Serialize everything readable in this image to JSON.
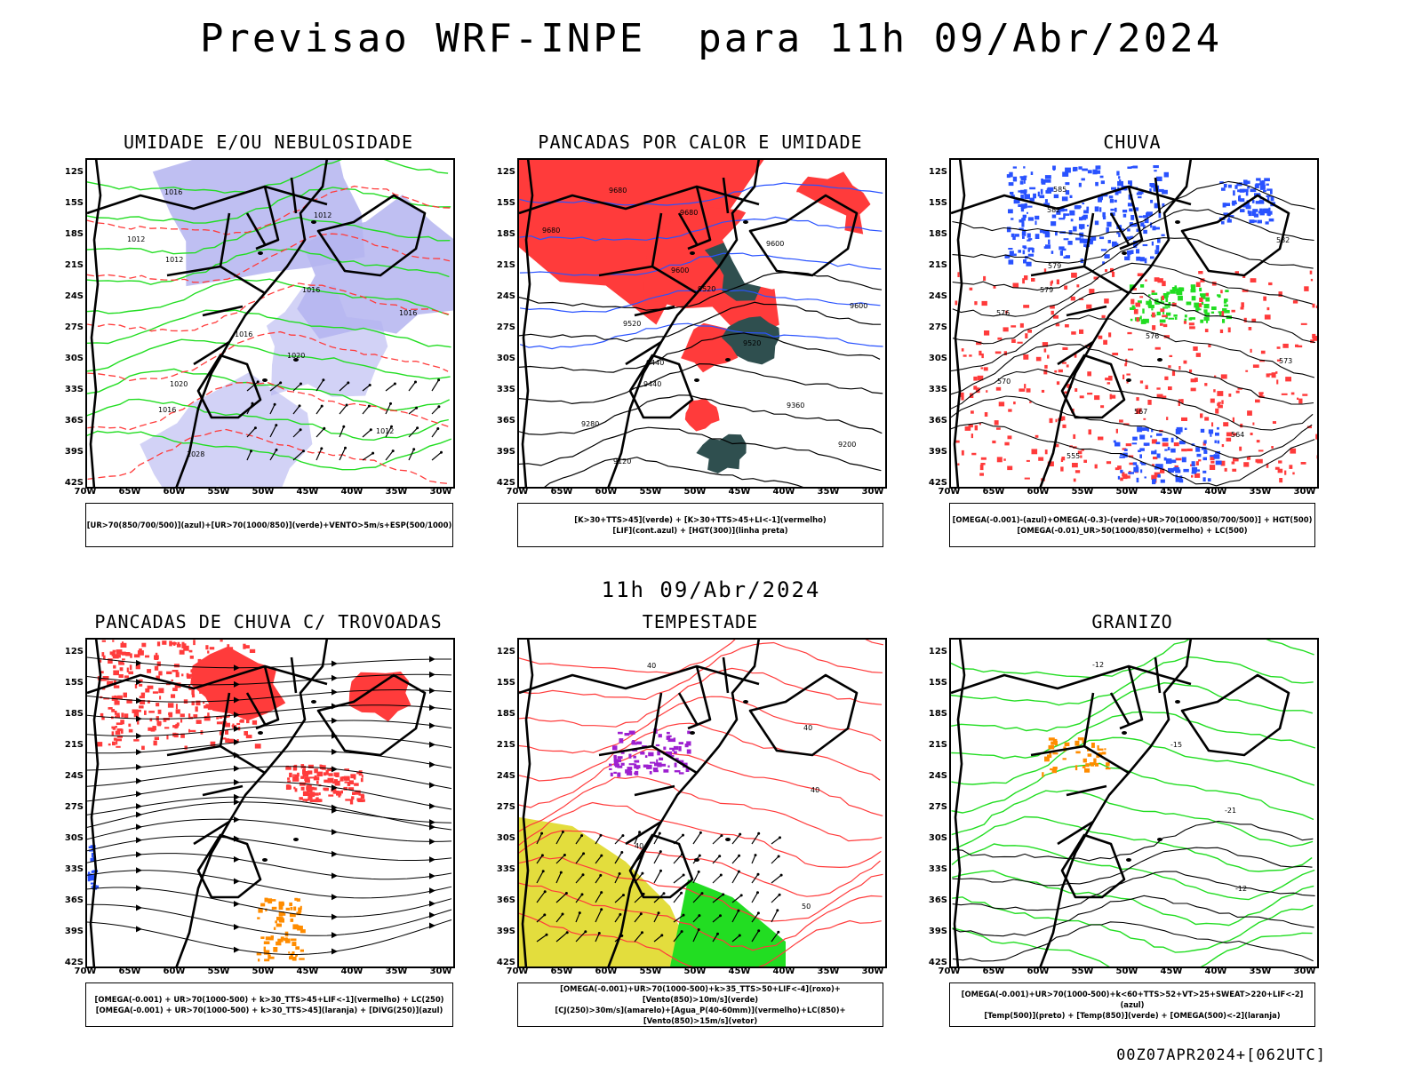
{
  "header": {
    "title": "Previsao WRF-INPE  para 11h 09/Abr/2024",
    "mid_title": "11h 09/Abr/2024",
    "footer_stamp": "00Z07APR2024+[062UTC]"
  },
  "axes": {
    "lat_ticks": [
      "12S",
      "15S",
      "18S",
      "21S",
      "24S",
      "27S",
      "30S",
      "33S",
      "36S",
      "39S",
      "42S"
    ],
    "lon_ticks": [
      "70W",
      "65W",
      "60W",
      "55W",
      "50W",
      "45W",
      "40W",
      "35W",
      "30W"
    ]
  },
  "colors": {
    "blue": "#2952ff",
    "red": "#ff3b3b",
    "green": "#22dd22",
    "lavender": "#b4b4f0",
    "darkteal": "#2f4f4f",
    "yellow": "#e3dd3d",
    "orange": "#ff8c00",
    "purple": "#9d20d0"
  },
  "panels": [
    {
      "title": "UMIDADE E/OU NEBULOSIDADE",
      "legend": [
        "[UR>70(850/700/500)](azul)+[UR>70(1000/850)](verde)+VENTO>5m/s+ESP(500/1000)"
      ],
      "contour_labels": [
        "1016",
        "1012",
        "1012",
        "1012",
        "1016",
        "1016",
        "1016",
        "1020",
        "1020",
        "1016",
        "1012",
        "1028"
      ]
    },
    {
      "title": "PANCADAS POR CALOR E UMIDADE",
      "legend": [
        "[K>30+TTS>45](verde)  +  [K>30+TTS>45+LI<-1](vermelho)",
        "[LIF](cont.azul)  +  [HGT(300)](linha preta)"
      ],
      "contour_labels": [
        "9680",
        "9680",
        "9680",
        "9600",
        "9600",
        "9520",
        "9600",
        "9520",
        "9520",
        "9440",
        "9440",
        "9360",
        "9280",
        "9200",
        "9120"
      ]
    },
    {
      "title": "CHUVA",
      "legend": [
        "[OMEGA(-0.001)-(azul)+OMEGA(-0.3)-(verde)+UR>70(1000/850/700/500)]  +  HGT(500)",
        "[OMEGA(-0.01)_UR>50(1000/850)(vermelho)  +  LC(500)"
      ],
      "contour_labels": [
        "585",
        "582",
        "582",
        "579",
        "579",
        "576",
        "576",
        "573",
        "570",
        "567",
        "564",
        "555"
      ]
    },
    {
      "title": "PANCADAS DE CHUVA C/ TROVOADAS",
      "legend": [
        "[OMEGA(-0.001)  +  UR>70(1000-500)  +  k>30_TTS>45+LIF<-1](vermelho)  +  LC(250)",
        "[OMEGA(-0.001)  +  UR>70(1000-500)  +  k>30_TTS>45](laranja)  +  [DIVG(250)](azul)"
      ],
      "contour_labels": []
    },
    {
      "title": "TEMPESTADE",
      "legend": [
        "[OMEGA(-0.001)+UR>70(1000-500)+k>35_TTS>50+LIF<-4](roxo)+[Vento(850)>10m/s](verde)",
        "[CJ(250)>30m/s](amarelo)+[Agua_P(40-60mm)](vermelho)+LC(850)+[Vento(850)>15m/s](vetor)"
      ],
      "contour_labels": [
        "40",
        "40",
        "40",
        "40",
        "50"
      ]
    },
    {
      "title": "GRANIZO",
      "legend": [
        "[OMEGA(-0.001)+UR>70(1000-500)+k<60+TTS>52+VT>25+SWEAT>220+LIF<-2](azul)",
        "[Temp(500)](preto)  +  [Temp(850)](verde)  +  [OMEGA(500)<-2](laranja)"
      ],
      "contour_labels": [
        "-12",
        "-15",
        "-21",
        "-12"
      ]
    }
  ]
}
